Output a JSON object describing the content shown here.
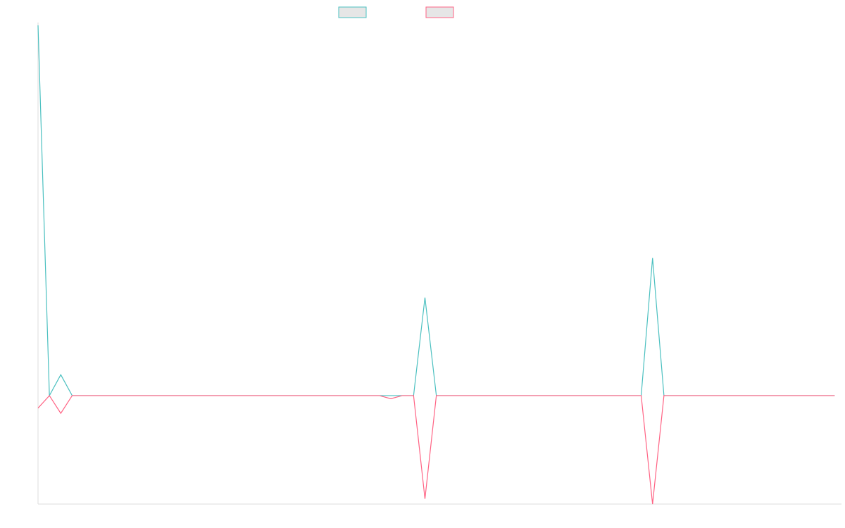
{
  "chart_data": {
    "type": "line",
    "title": "",
    "xlabel": "",
    "ylabel": "",
    "grid": false,
    "legend": "top-center",
    "x": [
      0,
      1,
      2,
      3,
      4,
      5,
      6,
      7,
      8,
      9,
      10,
      11,
      12,
      13,
      14,
      15,
      16,
      17,
      18,
      19,
      20,
      21,
      22,
      23,
      24,
      25,
      26,
      27,
      28,
      29,
      30,
      31,
      32,
      33,
      34,
      35,
      36,
      37,
      38,
      39,
      40,
      41,
      42,
      43,
      44,
      45,
      46,
      47,
      48,
      49,
      50,
      51,
      52,
      53,
      54,
      55,
      56,
      57,
      58,
      59,
      60,
      61,
      62,
      63,
      64,
      65,
      66,
      67,
      68,
      69,
      70
    ],
    "series": [
      {
        "color": "#4bc0c0",
        "values": [
          3.55,
          0,
          0.2,
          0,
          0,
          0,
          0,
          0,
          0,
          0,
          0,
          0,
          0,
          0,
          0,
          0,
          0,
          0,
          0,
          0,
          0,
          0,
          0,
          0,
          0,
          0,
          0,
          0,
          0,
          0,
          0,
          0,
          0,
          0,
          0.94,
          0,
          0,
          0,
          0,
          0,
          0,
          0,
          0,
          0,
          0,
          0,
          0,
          0,
          0,
          0,
          0,
          0,
          0,
          0,
          1.32,
          0,
          0,
          0,
          0,
          0,
          0,
          0,
          0,
          0,
          0,
          0,
          0,
          0,
          0,
          0,
          0
        ]
      },
      {
        "color": "#ff6384",
        "values": [
          -0.12,
          0,
          -0.17,
          0,
          0,
          0,
          0,
          0,
          0,
          0,
          0,
          0,
          0,
          0,
          0,
          0,
          0,
          0,
          0,
          0,
          0,
          0,
          0,
          0,
          0,
          0,
          0,
          0,
          0,
          0,
          0,
          -0.03,
          0,
          0,
          -0.99,
          0,
          0,
          0,
          0,
          0,
          0,
          0,
          0,
          0,
          0,
          0,
          0,
          0,
          0,
          0,
          0,
          0,
          0,
          0,
          -1.04,
          0,
          0,
          0,
          0,
          0,
          0,
          0,
          0,
          0,
          0,
          0,
          0,
          0,
          0,
          0,
          0
        ]
      }
    ],
    "xlim": [
      0,
      70.6
    ],
    "ylim": [
      -1.04,
      3.55
    ]
  },
  "legend_colors": {
    "fill": "#e6e6e6"
  }
}
